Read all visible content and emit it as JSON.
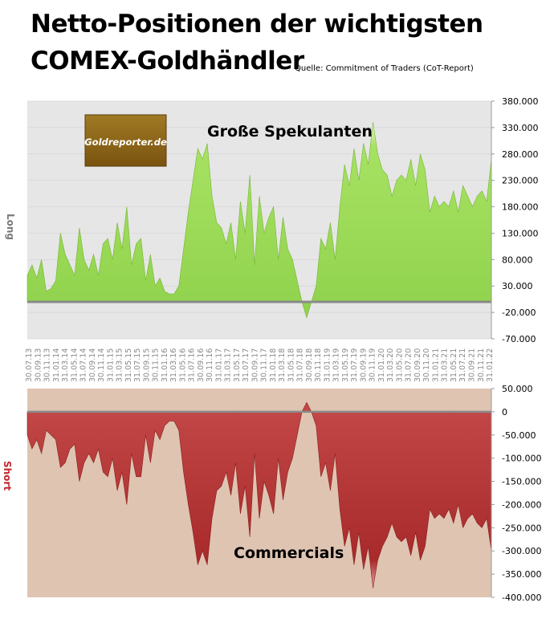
{
  "title_line1": "Netto-Positionen der wichtigsten",
  "title_line2": "COMEX-Goldhändler",
  "source": "Quelle: Commitment of Traders (CoT-Report)",
  "logo_text": "Goldreporter.de",
  "colors": {
    "top_plot_bg": "#e6e6e6",
    "top_fill": "#97dc52",
    "bottom_plot_bg": "#dfc4b2",
    "bottom_fill": "#ad2d2d",
    "logo_bg": "#8c6414",
    "long_label": "#7a7a7a",
    "short_label": "#c0272d"
  },
  "chart_data": [
    {
      "type": "area",
      "series": [
        {
          "name": "Große Spekulanten"
        }
      ],
      "side_label": "Long",
      "ylim": [
        -70000,
        380000
      ],
      "y_ticks": [
        "-70.000",
        "-20.000",
        "30.000",
        "80.000",
        "130.000",
        "180.000",
        "230.000",
        "280.000",
        "330.000",
        "380.000"
      ],
      "x_ticks": [
        "30.07.13",
        "30.09.13",
        "30.11.13",
        "31.01.14",
        "31.03.14",
        "31.05.14",
        "31.07.14",
        "30.09.14",
        "30.11.14",
        "31.01.15",
        "31.03.15",
        "31.05.15",
        "31.07.15",
        "30.09.15",
        "30.11.15",
        "31.01.16",
        "31.03.16",
        "31.05.16",
        "31.07.16",
        "30.09.16",
        "30.11.16",
        "31.01.17",
        "31.03.17",
        "31.05.17",
        "31.07.17",
        "30.09.17",
        "30.11.17",
        "31.01.18",
        "31.03.18",
        "31.05.18",
        "31.07.18",
        "30.09.18",
        "30.11.18",
        "31.01.19",
        "31.03.19",
        "31.05.19",
        "31.07.19",
        "30.09.19",
        "30.11.19",
        "31.01.20",
        "31.03.20",
        "31.05.20",
        "31.07.20",
        "30.09.20",
        "30.11.20",
        "31.01.21",
        "31.03.21",
        "31.05.21",
        "31.07.21",
        "30.09.21",
        "30.11.21",
        "31.01.22"
      ],
      "values": [
        50000,
        70000,
        45000,
        80000,
        20000,
        25000,
        40000,
        130000,
        90000,
        70000,
        50000,
        140000,
        80000,
        60000,
        90000,
        50000,
        110000,
        120000,
        80000,
        150000,
        100000,
        180000,
        70000,
        110000,
        120000,
        40000,
        90000,
        30000,
        45000,
        20000,
        15000,
        15000,
        30000,
        100000,
        170000,
        230000,
        290000,
        270000,
        300000,
        200000,
        150000,
        140000,
        110000,
        150000,
        80000,
        190000,
        130000,
        240000,
        70000,
        200000,
        130000,
        160000,
        180000,
        80000,
        160000,
        100000,
        80000,
        40000,
        0,
        -30000,
        0,
        30000,
        120000,
        100000,
        150000,
        80000,
        180000,
        260000,
        220000,
        290000,
        230000,
        300000,
        260000,
        340000,
        280000,
        250000,
        240000,
        200000,
        230000,
        240000,
        230000,
        270000,
        220000,
        280000,
        250000,
        170000,
        200000,
        180000,
        190000,
        180000,
        210000,
        170000,
        220000,
        200000,
        180000,
        200000,
        210000,
        190000,
        270000
      ]
    },
    {
      "type": "area",
      "series": [
        {
          "name": "Commercials"
        }
      ],
      "side_label": "Short",
      "ylim": [
        -400000,
        50000
      ],
      "y_ticks": [
        "-400.000",
        "-350.000",
        "-300.000",
        "-250.000",
        "-200.000",
        "-150.000",
        "-100.000",
        "-50.000",
        "0",
        "50.000"
      ],
      "values": [
        -50000,
        -80000,
        -60000,
        -90000,
        -40000,
        -50000,
        -60000,
        -120000,
        -110000,
        -80000,
        -70000,
        -150000,
        -110000,
        -90000,
        -110000,
        -80000,
        -130000,
        -140000,
        -100000,
        -170000,
        -130000,
        -200000,
        -90000,
        -140000,
        -140000,
        -50000,
        -110000,
        -40000,
        -60000,
        -30000,
        -20000,
        -20000,
        -40000,
        -130000,
        -200000,
        -260000,
        -330000,
        -300000,
        -330000,
        -230000,
        -170000,
        -160000,
        -130000,
        -180000,
        -110000,
        -220000,
        -160000,
        -270000,
        -90000,
        -230000,
        -150000,
        -180000,
        -220000,
        -100000,
        -190000,
        -130000,
        -100000,
        -50000,
        0,
        20000,
        0,
        -30000,
        -140000,
        -110000,
        -170000,
        -90000,
        -210000,
        -290000,
        -250000,
        -330000,
        -260000,
        -340000,
        -290000,
        -380000,
        -320000,
        -290000,
        -270000,
        -240000,
        -270000,
        -280000,
        -270000,
        -310000,
        -260000,
        -320000,
        -290000,
        -210000,
        -230000,
        -220000,
        -230000,
        -210000,
        -240000,
        -200000,
        -250000,
        -230000,
        -220000,
        -240000,
        -250000,
        -230000,
        -300000
      ]
    }
  ]
}
